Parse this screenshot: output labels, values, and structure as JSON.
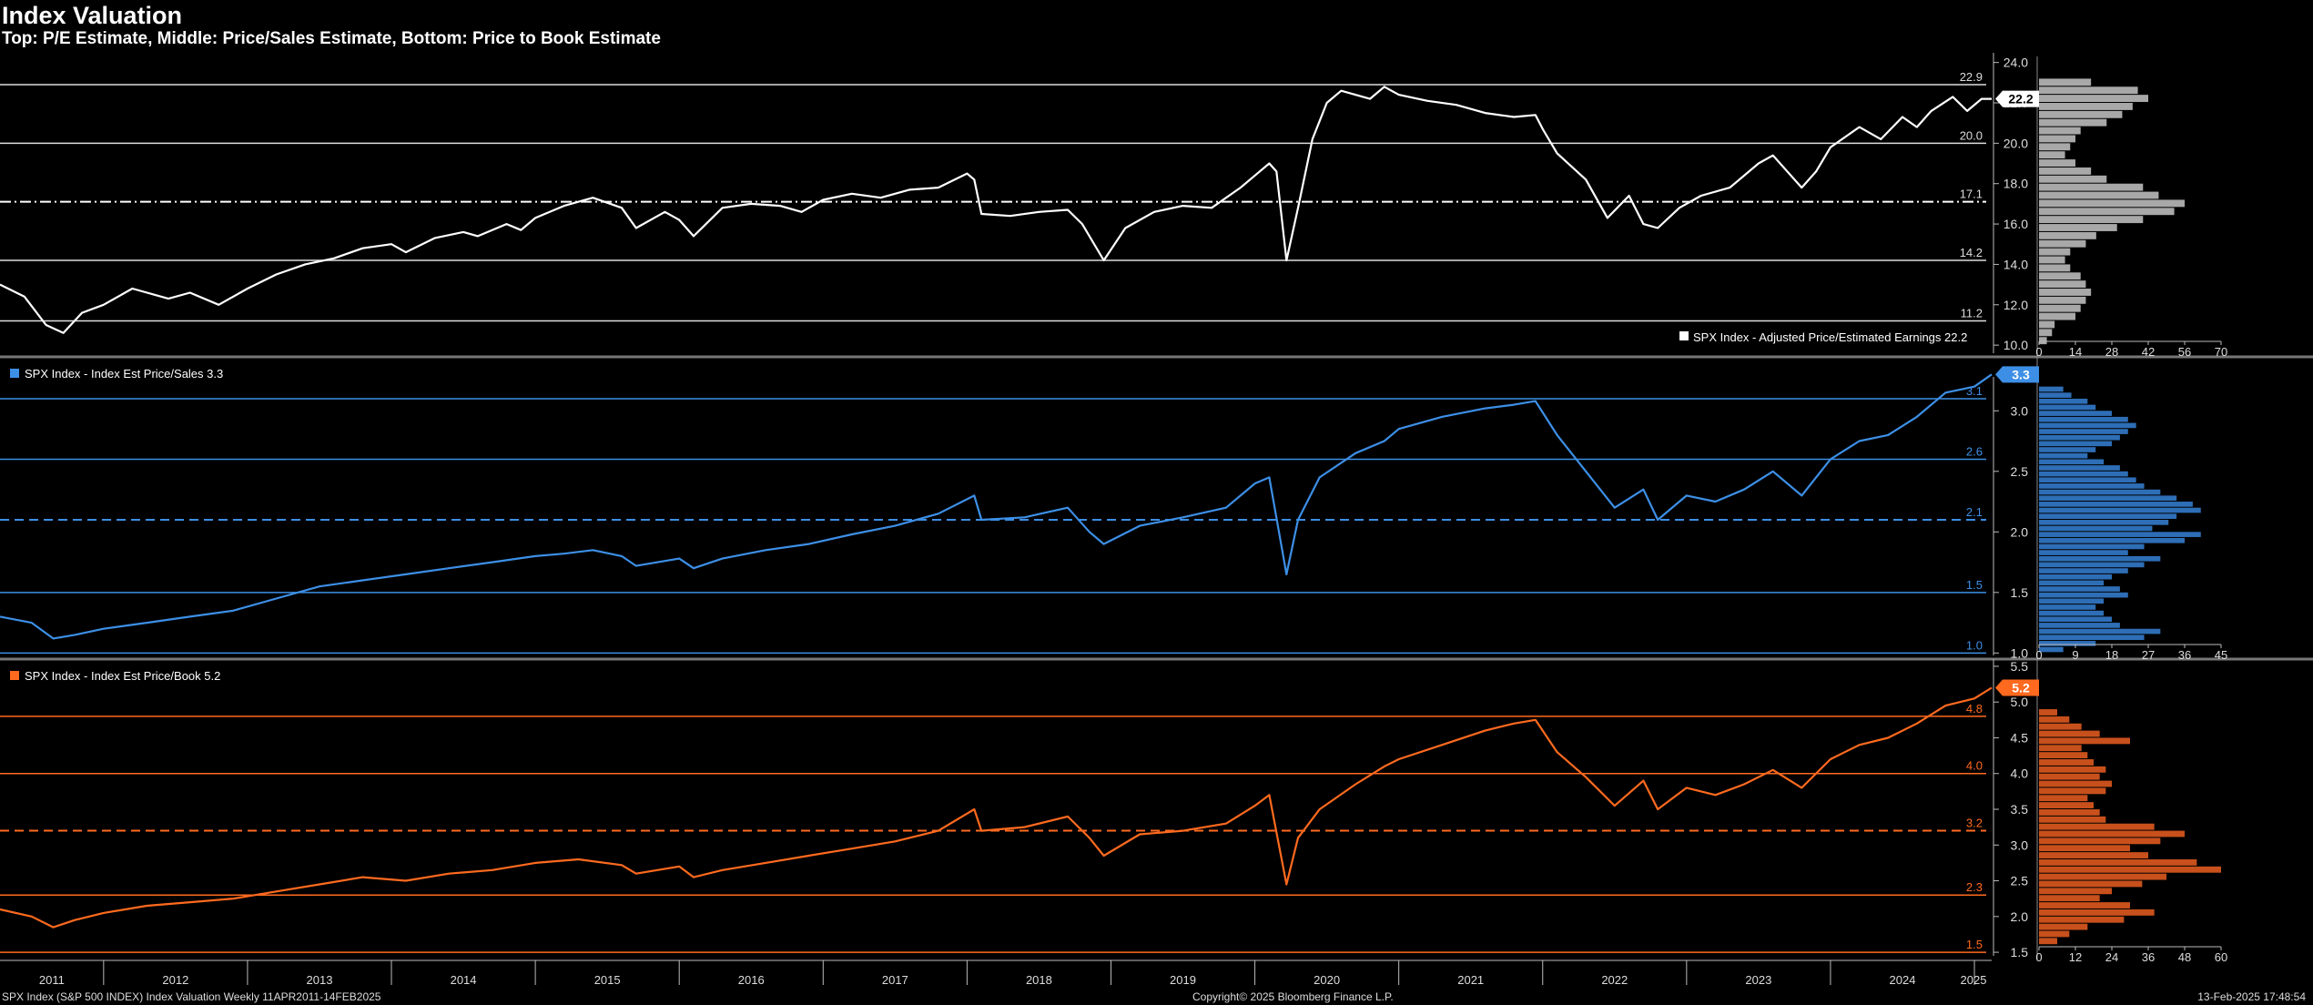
{
  "header": {
    "title": "Index Valuation",
    "subtitle": "Top: P/E Estimate, Middle: Price/Sales Estimate, Bottom: Price to Book Estimate"
  },
  "footer": {
    "left": "SPX Index (S&P 500 INDEX) Index Valuation  Weekly 11APR2011-14FEB2025",
    "middle": "Copyright© 2025 Bloomberg Finance L.P.",
    "right": "13-Feb-2025 17:48:54"
  },
  "x_axis": {
    "years": [
      "2011",
      "2012",
      "2013",
      "2014",
      "2015",
      "2016",
      "2017",
      "2018",
      "2019",
      "2020",
      "2021",
      "2022",
      "2023",
      "2024",
      "2025"
    ],
    "start": 2011.28,
    "end": 2025.12
  },
  "colors": {
    "pe": "#ffffff",
    "ps": "#3d8fe6",
    "pb": "#ff6a1f",
    "pe_hist": "#a8a8a8",
    "ps_hist": "#2e6eb6",
    "pb_hist": "#c8501c"
  },
  "chart_data": [
    {
      "type": "line",
      "name": "pe",
      "legend": "SPX Index - Adjusted Price/Estimated Earnings",
      "legend_value": "22.2",
      "current_value": "22.2",
      "ylim": [
        9.6,
        24.3
      ],
      "y_ticks": [
        "10.0",
        "12.0",
        "14.0",
        "16.0",
        "18.0",
        "20.0",
        "22.0",
        "24.0"
      ],
      "ref_lines": [
        22.9,
        20.0,
        17.1,
        14.2,
        11.2
      ],
      "ref_labels": [
        "22.9",
        "20.0",
        "17.1",
        "14.2",
        "11.2"
      ],
      "mean": 17.1,
      "points": [
        [
          2011.28,
          13.0
        ],
        [
          2011.45,
          12.4
        ],
        [
          2011.6,
          11.0
        ],
        [
          2011.72,
          10.6
        ],
        [
          2011.85,
          11.6
        ],
        [
          2012.0,
          12.0
        ],
        [
          2012.2,
          12.8
        ],
        [
          2012.45,
          12.3
        ],
        [
          2012.6,
          12.6
        ],
        [
          2012.8,
          12.0
        ],
        [
          2013.0,
          12.8
        ],
        [
          2013.2,
          13.5
        ],
        [
          2013.4,
          14.0
        ],
        [
          2013.6,
          14.3
        ],
        [
          2013.8,
          14.8
        ],
        [
          2014.0,
          15.0
        ],
        [
          2014.1,
          14.6
        ],
        [
          2014.3,
          15.3
        ],
        [
          2014.5,
          15.6
        ],
        [
          2014.6,
          15.4
        ],
        [
          2014.8,
          16.0
        ],
        [
          2014.9,
          15.7
        ],
        [
          2015.0,
          16.3
        ],
        [
          2015.2,
          16.9
        ],
        [
          2015.4,
          17.3
        ],
        [
          2015.6,
          16.8
        ],
        [
          2015.7,
          15.8
        ],
        [
          2015.9,
          16.6
        ],
        [
          2016.0,
          16.2
        ],
        [
          2016.1,
          15.4
        ],
        [
          2016.3,
          16.8
        ],
        [
          2016.5,
          17.0
        ],
        [
          2016.7,
          16.9
        ],
        [
          2016.85,
          16.6
        ],
        [
          2017.0,
          17.2
        ],
        [
          2017.2,
          17.5
        ],
        [
          2017.4,
          17.3
        ],
        [
          2017.6,
          17.7
        ],
        [
          2017.8,
          17.8
        ],
        [
          2018.0,
          18.5
        ],
        [
          2018.05,
          18.2
        ],
        [
          2018.1,
          16.5
        ],
        [
          2018.3,
          16.4
        ],
        [
          2018.5,
          16.6
        ],
        [
          2018.7,
          16.7
        ],
        [
          2018.8,
          16.0
        ],
        [
          2018.95,
          14.2
        ],
        [
          2019.1,
          15.8
        ],
        [
          2019.3,
          16.6
        ],
        [
          2019.5,
          16.9
        ],
        [
          2019.7,
          16.8
        ],
        [
          2019.9,
          17.8
        ],
        [
          2020.0,
          18.4
        ],
        [
          2020.1,
          19.0
        ],
        [
          2020.15,
          18.6
        ],
        [
          2020.22,
          14.2
        ],
        [
          2020.3,
          16.8
        ],
        [
          2020.4,
          20.2
        ],
        [
          2020.5,
          22.0
        ],
        [
          2020.6,
          22.6
        ],
        [
          2020.8,
          22.2
        ],
        [
          2020.9,
          22.8
        ],
        [
          2021.0,
          22.4
        ],
        [
          2021.2,
          22.1
        ],
        [
          2021.4,
          21.9
        ],
        [
          2021.6,
          21.5
        ],
        [
          2021.8,
          21.3
        ],
        [
          2021.95,
          21.4
        ],
        [
          2022.0,
          20.7
        ],
        [
          2022.1,
          19.5
        ],
        [
          2022.3,
          18.2
        ],
        [
          2022.45,
          16.3
        ],
        [
          2022.6,
          17.4
        ],
        [
          2022.7,
          16.0
        ],
        [
          2022.8,
          15.8
        ],
        [
          2022.95,
          16.8
        ],
        [
          2023.1,
          17.4
        ],
        [
          2023.3,
          17.8
        ],
        [
          2023.5,
          19.0
        ],
        [
          2023.6,
          19.4
        ],
        [
          2023.8,
          17.8
        ],
        [
          2023.9,
          18.6
        ],
        [
          2024.0,
          19.8
        ],
        [
          2024.2,
          20.8
        ],
        [
          2024.35,
          20.2
        ],
        [
          2024.5,
          21.3
        ],
        [
          2024.6,
          20.8
        ],
        [
          2024.7,
          21.6
        ],
        [
          2024.85,
          22.3
        ],
        [
          2024.95,
          21.6
        ],
        [
          2025.05,
          22.2
        ],
        [
          2025.12,
          22.2
        ]
      ],
      "hist_bins": [
        10.0,
        10.4,
        10.8,
        11.2,
        11.6,
        12.0,
        12.4,
        12.8,
        13.2,
        13.6,
        14.0,
        14.4,
        14.8,
        15.2,
        15.6,
        16.0,
        16.4,
        16.8,
        17.2,
        17.6,
        18.0,
        18.4,
        18.8,
        19.2,
        19.6,
        20.0,
        20.4,
        20.8,
        21.2,
        21.6,
        22.0,
        22.4,
        22.8
      ],
      "hist_counts": [
        3,
        5,
        6,
        14,
        16,
        18,
        20,
        18,
        16,
        12,
        10,
        12,
        18,
        22,
        30,
        40,
        52,
        56,
        46,
        40,
        26,
        20,
        14,
        10,
        12,
        14,
        16,
        26,
        32,
        36,
        42,
        38,
        20
      ],
      "hist_ticks": [
        "0",
        "14",
        "28",
        "42",
        "56",
        "70"
      ],
      "hist_max": 70
    },
    {
      "type": "line",
      "name": "ps",
      "legend": "SPX Index - Index Est Price/Sales",
      "legend_value": "3.3",
      "current_value": "3.3",
      "ylim": [
        0.98,
        3.25
      ],
      "y_ticks": [
        "1.0",
        "1.5",
        "2.0",
        "2.5",
        "3.0"
      ],
      "ref_lines": [
        3.1,
        2.6,
        2.1,
        1.5,
        1.0
      ],
      "ref_labels": [
        "3.1",
        "2.6",
        "2.1",
        "1.5",
        "1.0"
      ],
      "mean": 2.1,
      "points": [
        [
          2011.28,
          1.3
        ],
        [
          2011.5,
          1.25
        ],
        [
          2011.65,
          1.12
        ],
        [
          2011.8,
          1.15
        ],
        [
          2012.0,
          1.2
        ],
        [
          2012.3,
          1.25
        ],
        [
          2012.6,
          1.3
        ],
        [
          2012.9,
          1.35
        ],
        [
          2013.2,
          1.45
        ],
        [
          2013.5,
          1.55
        ],
        [
          2013.8,
          1.6
        ],
        [
          2014.1,
          1.65
        ],
        [
          2014.4,
          1.7
        ],
        [
          2014.7,
          1.75
        ],
        [
          2015.0,
          1.8
        ],
        [
          2015.2,
          1.82
        ],
        [
          2015.4,
          1.85
        ],
        [
          2015.6,
          1.8
        ],
        [
          2015.7,
          1.72
        ],
        [
          2016.0,
          1.78
        ],
        [
          2016.1,
          1.7
        ],
        [
          2016.3,
          1.78
        ],
        [
          2016.6,
          1.85
        ],
        [
          2016.9,
          1.9
        ],
        [
          2017.2,
          1.98
        ],
        [
          2017.5,
          2.05
        ],
        [
          2017.8,
          2.15
        ],
        [
          2018.05,
          2.3
        ],
        [
          2018.1,
          2.1
        ],
        [
          2018.4,
          2.12
        ],
        [
          2018.7,
          2.2
        ],
        [
          2018.85,
          2.0
        ],
        [
          2018.95,
          1.9
        ],
        [
          2019.2,
          2.05
        ],
        [
          2019.5,
          2.12
        ],
        [
          2019.8,
          2.2
        ],
        [
          2020.0,
          2.4
        ],
        [
          2020.1,
          2.45
        ],
        [
          2020.22,
          1.65
        ],
        [
          2020.3,
          2.1
        ],
        [
          2020.45,
          2.45
        ],
        [
          2020.7,
          2.65
        ],
        [
          2020.9,
          2.75
        ],
        [
          2021.0,
          2.85
        ],
        [
          2021.3,
          2.95
        ],
        [
          2021.6,
          3.02
        ],
        [
          2021.8,
          3.05
        ],
        [
          2021.95,
          3.08
        ],
        [
          2022.1,
          2.8
        ],
        [
          2022.3,
          2.5
        ],
        [
          2022.5,
          2.2
        ],
        [
          2022.7,
          2.35
        ],
        [
          2022.8,
          2.1
        ],
        [
          2023.0,
          2.3
        ],
        [
          2023.2,
          2.25
        ],
        [
          2023.4,
          2.35
        ],
        [
          2023.6,
          2.5
        ],
        [
          2023.8,
          2.3
        ],
        [
          2024.0,
          2.6
        ],
        [
          2024.2,
          2.75
        ],
        [
          2024.4,
          2.8
        ],
        [
          2024.6,
          2.95
        ],
        [
          2024.8,
          3.15
        ],
        [
          2025.0,
          3.2
        ],
        [
          2025.12,
          3.3
        ]
      ],
      "hist_bins": [
        1.0,
        1.05,
        1.1,
        1.15,
        1.2,
        1.25,
        1.3,
        1.35,
        1.4,
        1.45,
        1.5,
        1.55,
        1.6,
        1.65,
        1.7,
        1.75,
        1.8,
        1.85,
        1.9,
        1.95,
        2.0,
        2.05,
        2.1,
        2.15,
        2.2,
        2.25,
        2.3,
        2.35,
        2.4,
        2.45,
        2.5,
        2.55,
        2.6,
        2.65,
        2.7,
        2.75,
        2.8,
        2.85,
        2.9,
        2.95,
        3.0,
        3.05,
        3.1,
        3.15
      ],
      "hist_counts": [
        6,
        14,
        26,
        30,
        20,
        18,
        16,
        14,
        16,
        22,
        20,
        16,
        18,
        22,
        26,
        30,
        22,
        26,
        36,
        40,
        28,
        32,
        34,
        40,
        38,
        34,
        30,
        26,
        24,
        22,
        20,
        16,
        12,
        14,
        18,
        20,
        22,
        24,
        22,
        18,
        14,
        12,
        8,
        6
      ],
      "hist_ticks": [
        "0",
        "9",
        "18",
        "27",
        "36",
        "45"
      ],
      "hist_max": 45
    },
    {
      "type": "line",
      "name": "pb",
      "legend": "SPX Index - Index Est Price/Book",
      "legend_value": "5.2",
      "current_value": "5.2",
      "ylim": [
        1.45,
        5.55
      ],
      "y_ticks": [
        "1.5",
        "2.0",
        "2.5",
        "3.0",
        "3.5",
        "4.0",
        "4.5",
        "5.0",
        "5.5"
      ],
      "ref_lines": [
        4.8,
        4.0,
        3.2,
        2.3,
        1.5
      ],
      "ref_labels": [
        "4.8",
        "4.0",
        "3.2",
        "2.3",
        "1.5"
      ],
      "mean": 3.2,
      "points": [
        [
          2011.28,
          2.1
        ],
        [
          2011.5,
          2.0
        ],
        [
          2011.65,
          1.85
        ],
        [
          2011.8,
          1.95
        ],
        [
          2012.0,
          2.05
        ],
        [
          2012.3,
          2.15
        ],
        [
          2012.6,
          2.2
        ],
        [
          2012.9,
          2.25
        ],
        [
          2013.2,
          2.35
        ],
        [
          2013.5,
          2.45
        ],
        [
          2013.8,
          2.55
        ],
        [
          2014.1,
          2.5
        ],
        [
          2014.4,
          2.6
        ],
        [
          2014.7,
          2.65
        ],
        [
          2015.0,
          2.75
        ],
        [
          2015.3,
          2.8
        ],
        [
          2015.6,
          2.72
        ],
        [
          2015.7,
          2.6
        ],
        [
          2016.0,
          2.7
        ],
        [
          2016.1,
          2.55
        ],
        [
          2016.3,
          2.65
        ],
        [
          2016.6,
          2.75
        ],
        [
          2016.9,
          2.85
        ],
        [
          2017.2,
          2.95
        ],
        [
          2017.5,
          3.05
        ],
        [
          2017.8,
          3.2
        ],
        [
          2018.05,
          3.5
        ],
        [
          2018.1,
          3.2
        ],
        [
          2018.4,
          3.25
        ],
        [
          2018.7,
          3.4
        ],
        [
          2018.85,
          3.1
        ],
        [
          2018.95,
          2.85
        ],
        [
          2019.2,
          3.15
        ],
        [
          2019.5,
          3.2
        ],
        [
          2019.8,
          3.3
        ],
        [
          2020.0,
          3.55
        ],
        [
          2020.1,
          3.7
        ],
        [
          2020.22,
          2.45
        ],
        [
          2020.3,
          3.1
        ],
        [
          2020.45,
          3.5
        ],
        [
          2020.7,
          3.85
        ],
        [
          2020.9,
          4.1
        ],
        [
          2021.0,
          4.2
        ],
        [
          2021.3,
          4.4
        ],
        [
          2021.6,
          4.6
        ],
        [
          2021.8,
          4.7
        ],
        [
          2021.95,
          4.75
        ],
        [
          2022.1,
          4.3
        ],
        [
          2022.3,
          3.95
        ],
        [
          2022.5,
          3.55
        ],
        [
          2022.7,
          3.9
        ],
        [
          2022.8,
          3.5
        ],
        [
          2023.0,
          3.8
        ],
        [
          2023.2,
          3.7
        ],
        [
          2023.4,
          3.85
        ],
        [
          2023.6,
          4.05
        ],
        [
          2023.8,
          3.8
        ],
        [
          2024.0,
          4.2
        ],
        [
          2024.2,
          4.4
        ],
        [
          2024.4,
          4.5
        ],
        [
          2024.6,
          4.7
        ],
        [
          2024.8,
          4.95
        ],
        [
          2025.0,
          5.05
        ],
        [
          2025.12,
          5.2
        ]
      ],
      "hist_bins": [
        1.6,
        1.7,
        1.8,
        1.9,
        2.0,
        2.1,
        2.2,
        2.3,
        2.4,
        2.5,
        2.6,
        2.7,
        2.8,
        2.9,
        3.0,
        3.1,
        3.2,
        3.3,
        3.4,
        3.5,
        3.6,
        3.7,
        3.8,
        3.9,
        4.0,
        4.1,
        4.2,
        4.3,
        4.4,
        4.5,
        4.6,
        4.7,
        4.8
      ],
      "hist_counts": [
        6,
        10,
        16,
        28,
        38,
        30,
        20,
        24,
        34,
        42,
        60,
        52,
        36,
        30,
        40,
        48,
        38,
        22,
        20,
        18,
        16,
        22,
        24,
        20,
        22,
        18,
        16,
        14,
        30,
        20,
        14,
        10,
        6
      ],
      "hist_ticks": [
        "0",
        "12",
        "24",
        "36",
        "48",
        "60"
      ],
      "hist_max": 60
    }
  ]
}
